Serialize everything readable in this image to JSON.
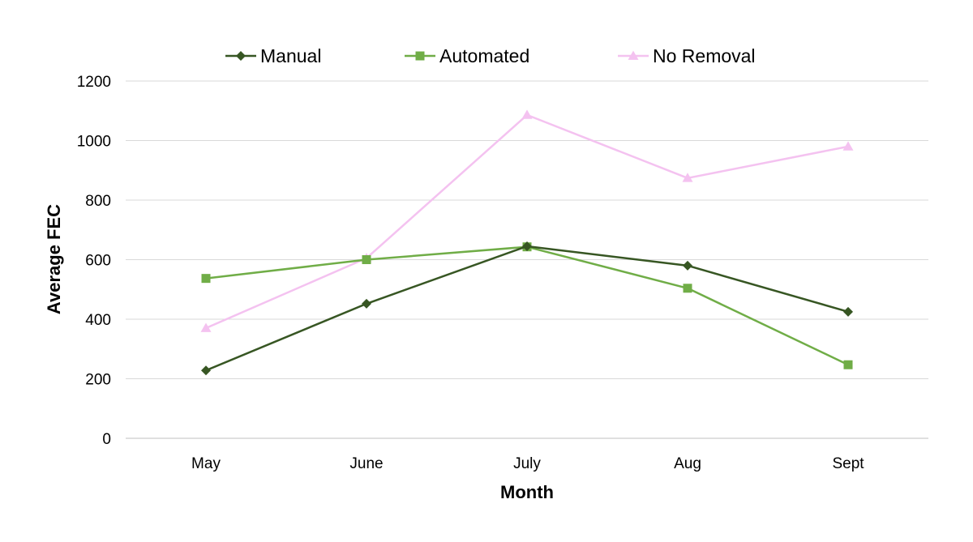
{
  "chart_data": {
    "type": "line",
    "title": "",
    "xlabel": "Month",
    "ylabel": "Average FEC",
    "categories": [
      "May",
      "June",
      "July",
      "Aug",
      "Sept"
    ],
    "ylim": [
      0,
      1200
    ],
    "yticks": [
      0,
      200,
      400,
      600,
      800,
      1000,
      1200
    ],
    "grid": true,
    "legend_position": "top",
    "series": [
      {
        "name": "Manual",
        "values": [
          228,
          452,
          645,
          580,
          425
        ],
        "color": "#375623",
        "marker": "diamond"
      },
      {
        "name": "Automated",
        "values": [
          537,
          600,
          643,
          504,
          247
        ],
        "color": "#70ad47",
        "marker": "square"
      },
      {
        "name": "No Removal",
        "values": [
          370,
          605,
          1086,
          874,
          980
        ],
        "color": "#f4c2f0",
        "marker": "triangle"
      }
    ]
  }
}
